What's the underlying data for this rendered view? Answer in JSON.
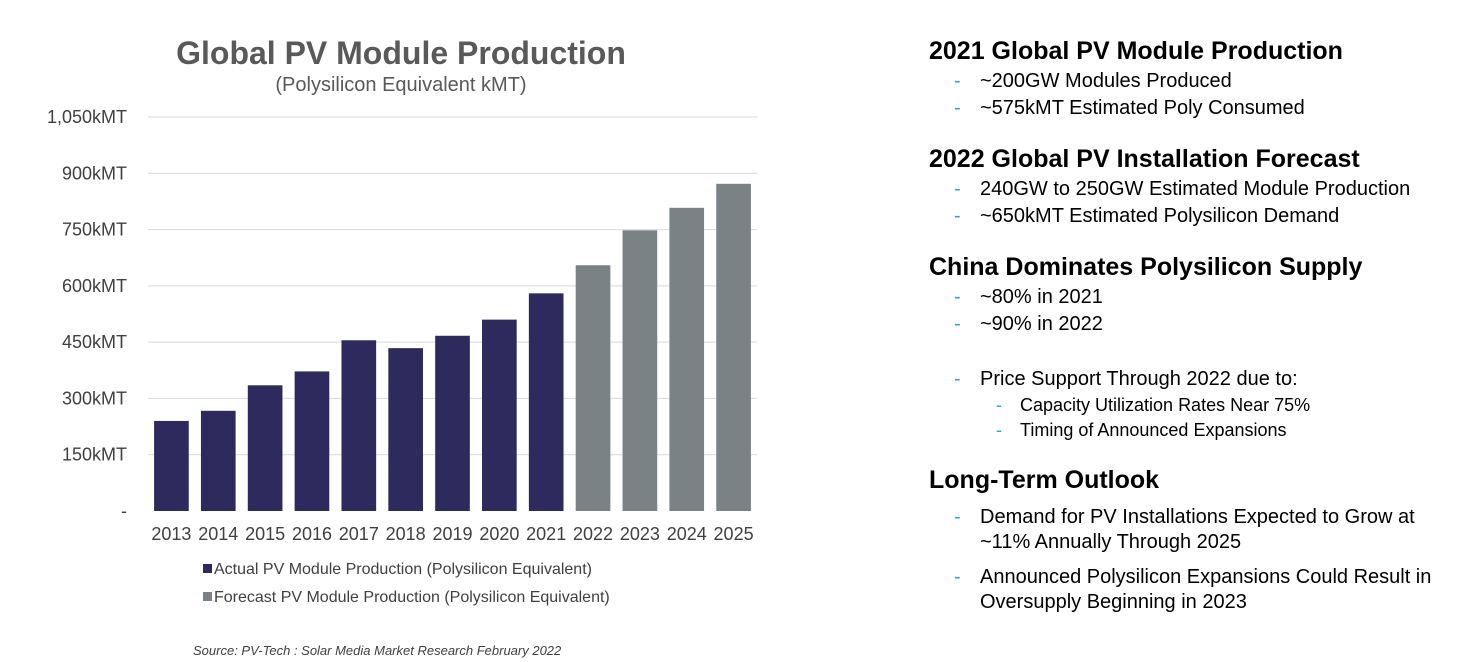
{
  "chart_data": {
    "type": "bar",
    "title": "Global PV Module Production",
    "subtitle": "(Polysilicon Equivalent kMT)",
    "categories": [
      "2013",
      "2014",
      "2015",
      "2016",
      "2017",
      "2018",
      "2019",
      "2020",
      "2021",
      "2022",
      "2023",
      "2024",
      "2025"
    ],
    "values": [
      240,
      267,
      335,
      372,
      455,
      434,
      467,
      510,
      580,
      655,
      748,
      808,
      872
    ],
    "series_assignment": [
      "actual",
      "actual",
      "actual",
      "actual",
      "actual",
      "actual",
      "actual",
      "actual",
      "actual",
      "forecast",
      "forecast",
      "forecast",
      "forecast"
    ],
    "series": [
      {
        "key": "actual",
        "name": "Actual PV Module Production (Polysilicon Equivalent)",
        "color": "#2e2a5e"
      },
      {
        "key": "forecast",
        "name": "Forecast PV Module Production (Polysilicon Equivalent)",
        "color": "#7b8285"
      }
    ],
    "yticks": [
      0,
      150,
      300,
      450,
      600,
      750,
      900,
      1050
    ],
    "ytick_labels": [
      "-",
      "150kMT",
      "300kMT",
      "450kMT",
      "600kMT",
      "750kMT",
      "900kMT",
      "1,050kMT"
    ],
    "ylim": [
      0,
      1050
    ],
    "xlabel": "",
    "ylabel": "",
    "grid": true,
    "legend_position": "bottom-left",
    "source": "Source:  PV-Tech : Solar Media Market Research February 2022"
  },
  "notes": {
    "sections": [
      {
        "heading": "2021 Global PV Module Production",
        "bullets": [
          "~200GW Modules Produced",
          "~575kMT Estimated Poly Consumed"
        ]
      },
      {
        "heading": "2022 Global PV Installation Forecast",
        "bullets": [
          "240GW to 250GW Estimated Module Production",
          "~650kMT Estimated Polysilicon Demand"
        ]
      },
      {
        "heading": "China Dominates Polysilicon Supply",
        "bullets": [
          "~80% in 2021",
          "~90% in 2022"
        ],
        "extra_bullet": "Price Support Through 2022 due to:",
        "sub_bullets": [
          "Capacity Utilization Rates Near 75%",
          "Timing of Announced Expansions"
        ]
      },
      {
        "heading": "Long-Term Outlook",
        "bullets": [
          "Demand for PV Installations Expected to Grow at ~11% Annually Through 2025",
          "Announced Polysilicon Expansions Could Result in Oversupply Beginning in 2023"
        ]
      }
    ],
    "dash": "-"
  }
}
